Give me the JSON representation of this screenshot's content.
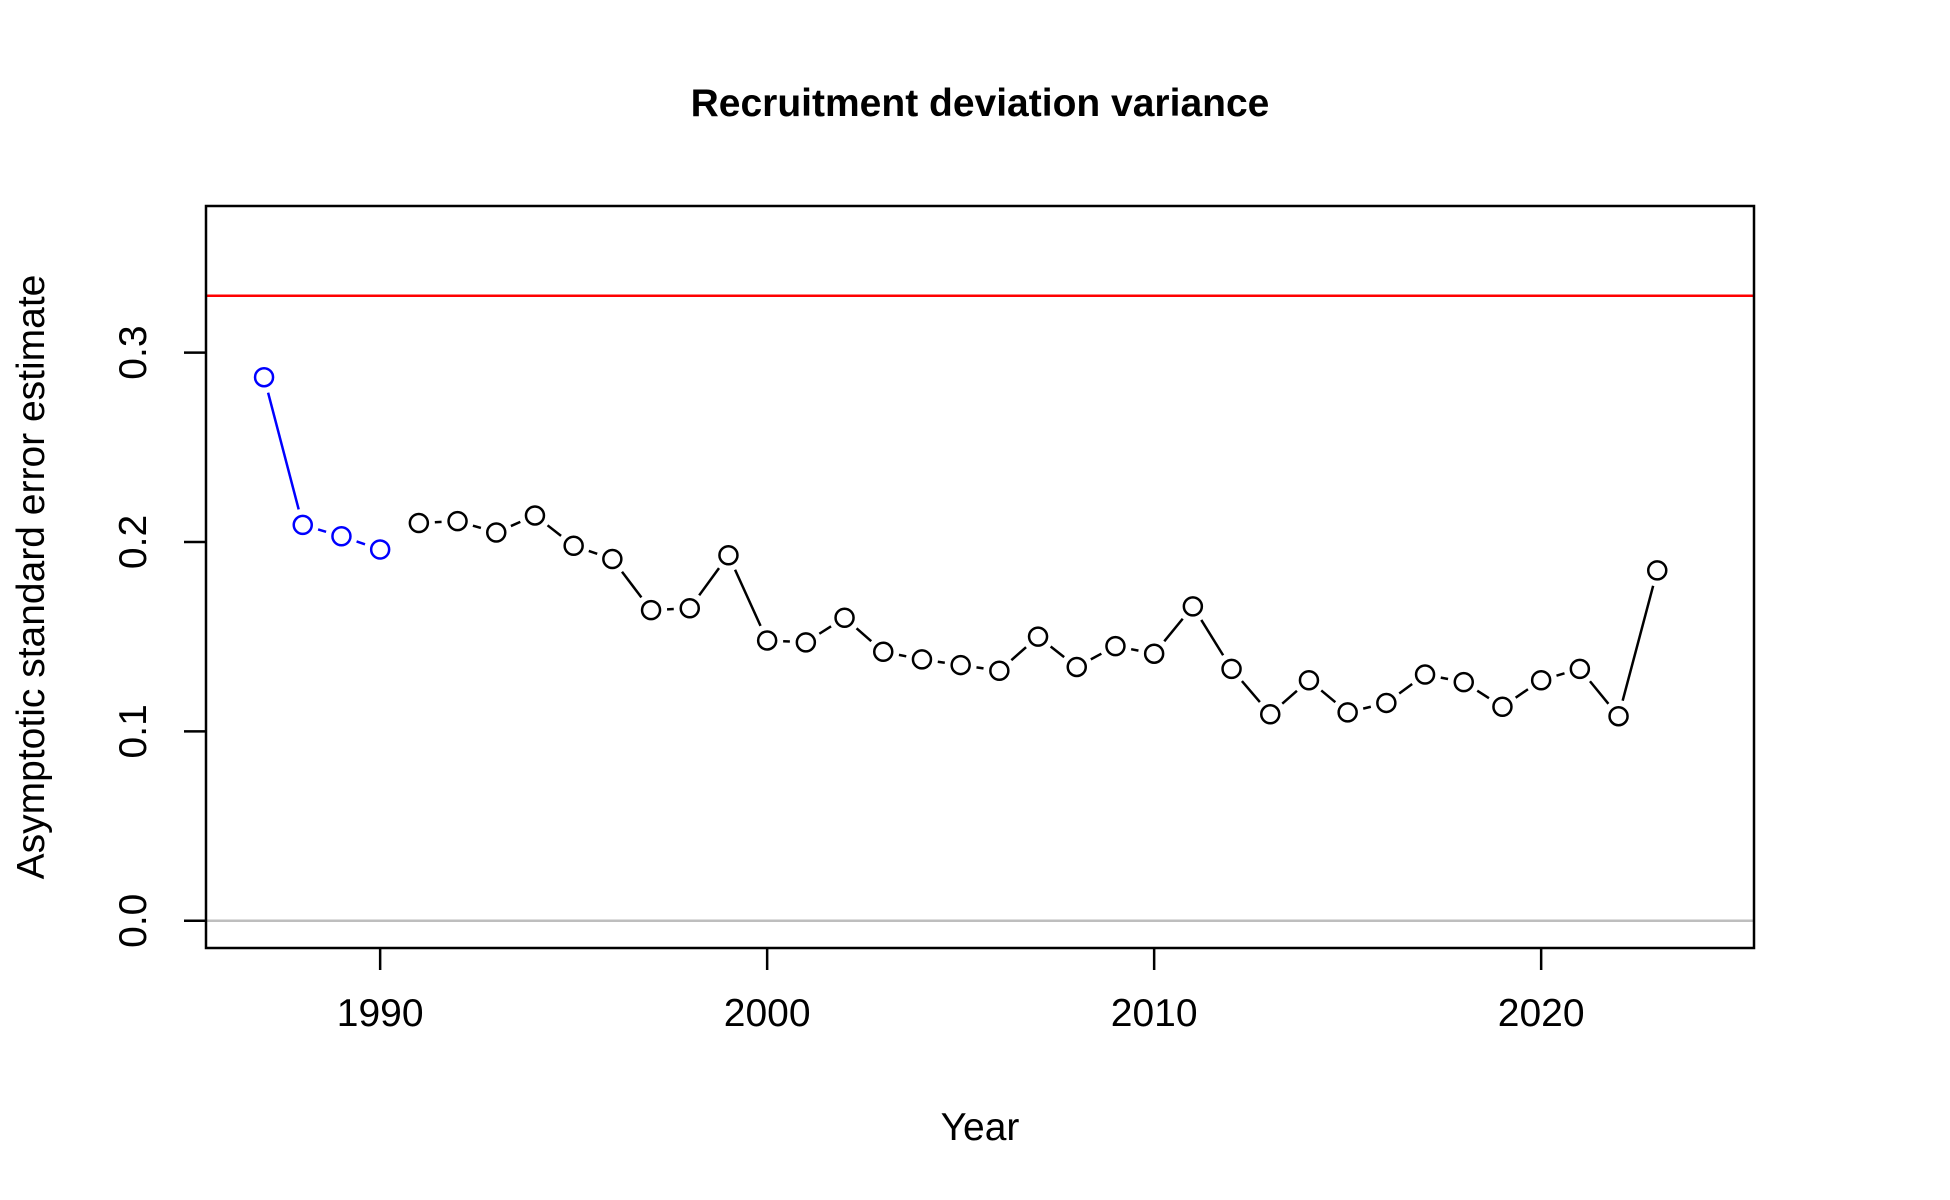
{
  "chart_data": {
    "type": "line",
    "title": "Recruitment deviation variance",
    "xlabel": "Year",
    "ylabel": "Asymptotic standard error estimate",
    "xlim": [
      1985.5,
      2025.5
    ],
    "ylim": [
      -0.0144,
      0.3774
    ],
    "x_ticks": [
      1990,
      2000,
      2010,
      2020
    ],
    "y_ticks": [
      0.0,
      0.1,
      0.2,
      0.3
    ],
    "x_tick_labels": [
      "1990",
      "2000",
      "2010",
      "2020"
    ],
    "y_tick_labels": [
      "0.0",
      "0.1",
      "0.2",
      "0.3"
    ],
    "grid": false,
    "reference_lines": [
      {
        "y": 0.33,
        "color": "#ff0000"
      },
      {
        "y": 0.0,
        "color": "#bebebe"
      }
    ],
    "series": [
      {
        "color": "#0000ff",
        "x": [
          1987,
          1988,
          1989,
          1990
        ],
        "values": [
          0.287,
          0.209,
          0.203,
          0.196
        ]
      },
      {
        "color": "#000000",
        "x": [
          1991,
          1992,
          1993,
          1994,
          1995,
          1996,
          1997,
          1998,
          1999,
          2000,
          2001,
          2002,
          2003,
          2004,
          2005,
          2006,
          2007,
          2008,
          2009,
          2010,
          2011,
          2012,
          2013,
          2014,
          2015,
          2016,
          2017,
          2018,
          2019,
          2020,
          2021,
          2022,
          2023
        ],
        "values": [
          0.21,
          0.211,
          0.205,
          0.214,
          0.198,
          0.191,
          0.164,
          0.165,
          0.193,
          0.148,
          0.147,
          0.16,
          0.142,
          0.138,
          0.135,
          0.132,
          0.15,
          0.134,
          0.145,
          0.141,
          0.166,
          0.133,
          0.109,
          0.127,
          0.11,
          0.115,
          0.13,
          0.126,
          0.113,
          0.127,
          0.133,
          0.108,
          0.185
        ]
      }
    ]
  }
}
